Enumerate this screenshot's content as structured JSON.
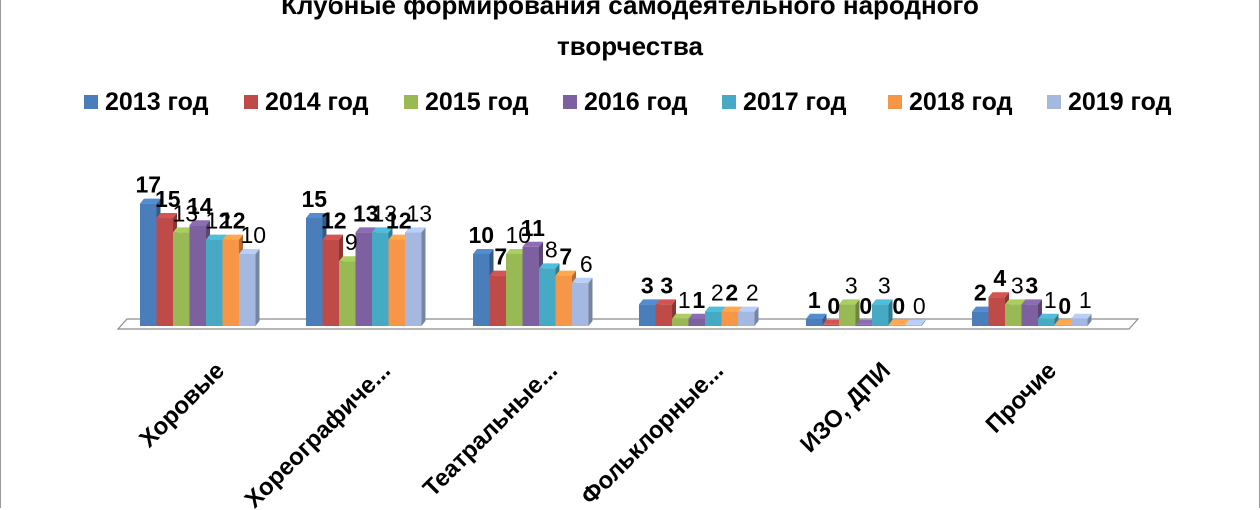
{
  "chart_data": {
    "type": "bar",
    "title": "Клубные формирования самодеятельного народного творчества",
    "title_lines": [
      "Клубные формирования самодеятельного народного",
      "творчества"
    ],
    "categories": [
      "Хоровые",
      "Хореографиче...",
      "Театральные...",
      "Фольклорные...",
      "ИЗО, ДПИ",
      "Прочие"
    ],
    "series": [
      {
        "name": "2013 год",
        "color": "#4a7ebb",
        "values": [
          17,
          15,
          10,
          3,
          1,
          2
        ],
        "label_bold": true
      },
      {
        "name": "2014 год",
        "color": "#be4b48",
        "values": [
          15,
          12,
          7,
          3,
          0,
          4
        ],
        "label_bold": true
      },
      {
        "name": "2015 год",
        "color": "#98b954",
        "values": [
          13,
          9,
          10,
          1,
          3,
          3
        ],
        "label_bold": false
      },
      {
        "name": "2016 год",
        "color": "#7d60a0",
        "values": [
          14,
          13,
          11,
          1,
          0,
          3
        ],
        "label_bold": true
      },
      {
        "name": "2017 год",
        "color": "#46aac5",
        "values": [
          12,
          13,
          8,
          2,
          3,
          1
        ],
        "label_bold": false
      },
      {
        "name": "2018 год",
        "color": "#f79646",
        "values": [
          12,
          12,
          7,
          2,
          0,
          0
        ],
        "label_bold": true
      },
      {
        "name": "2019 год",
        "color": "#a5b9e0",
        "values": [
          10,
          13,
          6,
          2,
          0,
          1
        ],
        "label_bold": false
      }
    ],
    "legend_position": "top",
    "grid": false,
    "ylim": [
      0,
      17
    ],
    "bar_style": "3d"
  }
}
